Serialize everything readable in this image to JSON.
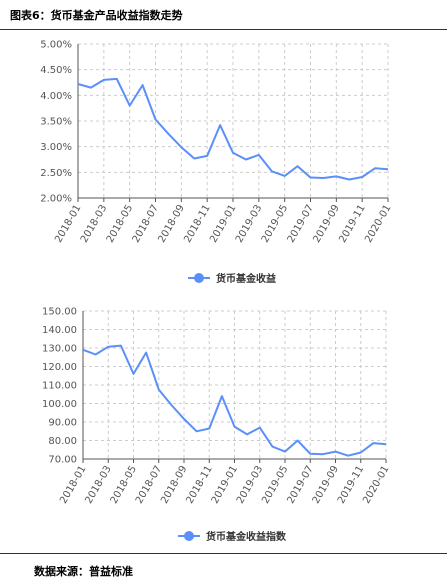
{
  "header": {
    "figure_title": "图表6：货币基金产品收益指数走势",
    "source": "数据来源：普益标准"
  },
  "colors": {
    "series": "#5b8ff9",
    "grid": "#cccccc",
    "axis": "#555555"
  },
  "chart_data": [
    {
      "type": "line",
      "x": [
        "2018-01",
        "2018-02",
        "2018-03",
        "2018-04",
        "2018-05",
        "2018-06",
        "2018-07",
        "2018-08",
        "2018-09",
        "2018-10",
        "2018-11",
        "2018-12",
        "2019-01",
        "2019-02",
        "2019-03",
        "2019-04",
        "2019-05",
        "2019-06",
        "2019-07",
        "2019-08",
        "2019-09",
        "2019-10",
        "2019-11",
        "2019-12",
        "2020-01"
      ],
      "x_tick_labels": [
        "2018-01",
        "2018-03",
        "2018-05",
        "2018-07",
        "2018-09",
        "2018-11",
        "2019-01",
        "2019-03",
        "2019-05",
        "2019-07",
        "2019-09",
        "2019-11",
        "2020-01"
      ],
      "y_tick_labels": [
        "2.00%",
        "2.50%",
        "3.00%",
        "3.50%",
        "4.00%",
        "4.50%",
        "5.00%"
      ],
      "ylim": [
        2.0,
        5.0
      ],
      "grid": true,
      "legend_position": "bottom",
      "series": [
        {
          "name": "货币基金收益",
          "values": [
            4.22,
            4.15,
            4.3,
            4.32,
            3.8,
            4.2,
            3.53,
            3.25,
            2.99,
            2.77,
            2.82,
            3.42,
            2.88,
            2.75,
            2.84,
            2.52,
            2.43,
            2.62,
            2.4,
            2.39,
            2.42,
            2.36,
            2.41,
            2.58,
            2.56
          ]
        }
      ]
    },
    {
      "type": "line",
      "x": [
        "2018-01",
        "2018-02",
        "2018-03",
        "2018-04",
        "2018-05",
        "2018-06",
        "2018-07",
        "2018-08",
        "2018-09",
        "2018-10",
        "2018-11",
        "2018-12",
        "2019-01",
        "2019-02",
        "2019-03",
        "2019-04",
        "2019-05",
        "2019-06",
        "2019-07",
        "2019-08",
        "2019-09",
        "2019-10",
        "2019-11",
        "2019-12",
        "2020-01"
      ],
      "x_tick_labels": [
        "2018-01",
        "2018-03",
        "2018-05",
        "2018-07",
        "2018-09",
        "2018-11",
        "2019-01",
        "2019-03",
        "2019-05",
        "2019-07",
        "2019-09",
        "2019-11",
        "2020-01"
      ],
      "y_tick_labels": [
        "70.00",
        "80.00",
        "90.00",
        "100.00",
        "110.00",
        "120.00",
        "130.00",
        "140.00",
        "150.00"
      ],
      "ylim": [
        70,
        150
      ],
      "grid": true,
      "legend_position": "bottom",
      "series": [
        {
          "name": "货币基金收益指数",
          "values": [
            129,
            126.5,
            130.7,
            131.3,
            116,
            127.5,
            107.5,
            99.2,
            91.7,
            85,
            86.5,
            104,
            87.5,
            83.3,
            87,
            76.7,
            74,
            80,
            72.8,
            72.6,
            74,
            71.8,
            73.5,
            78.6,
            78
          ]
        }
      ]
    }
  ]
}
